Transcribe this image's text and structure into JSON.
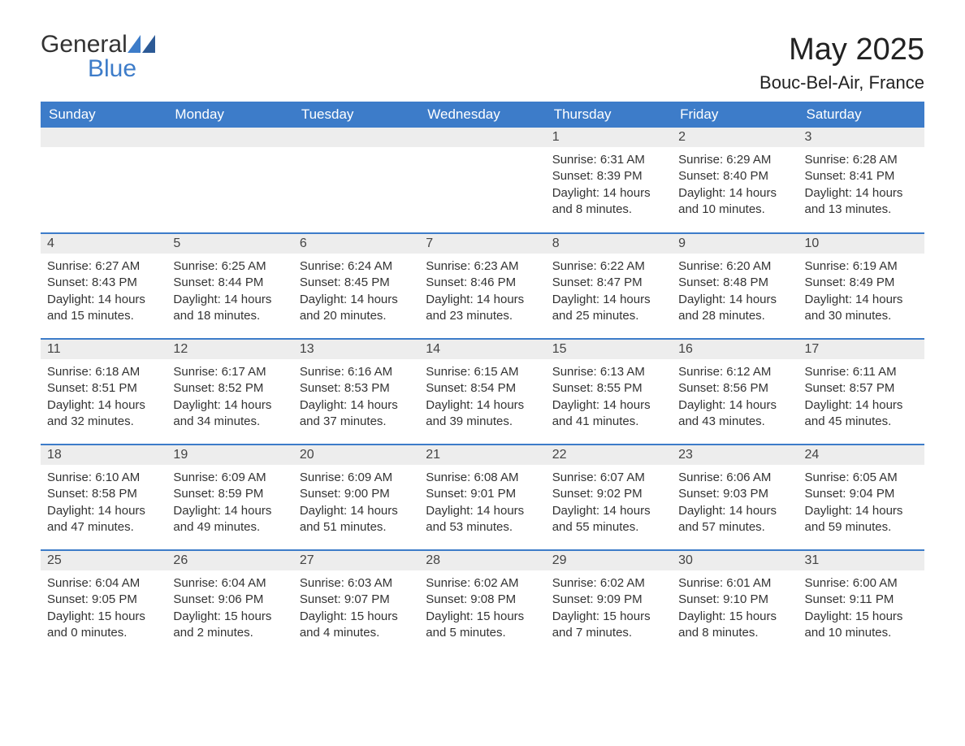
{
  "brand": {
    "word1": "General",
    "word2": "Blue",
    "text_color": "#333333",
    "accent_color": "#3d7cc9"
  },
  "title": "May 2025",
  "location": "Bouc-Bel-Air, France",
  "colors": {
    "header_bg": "#3d7cc9",
    "header_text": "#ffffff",
    "daynum_bg": "#ededed",
    "week_divider": "#3d7cc9",
    "body_text": "#333333",
    "background": "#ffffff"
  },
  "typography": {
    "title_fontsize": 38,
    "location_fontsize": 22,
    "header_fontsize": 17,
    "daynum_fontsize": 16,
    "body_fontsize": 15
  },
  "days_of_week": [
    "Sunday",
    "Monday",
    "Tuesday",
    "Wednesday",
    "Thursday",
    "Friday",
    "Saturday"
  ],
  "weeks": [
    [
      null,
      null,
      null,
      null,
      {
        "num": "1",
        "sunrise": "Sunrise: 6:31 AM",
        "sunset": "Sunset: 8:39 PM",
        "daylight": "Daylight: 14 hours and 8 minutes."
      },
      {
        "num": "2",
        "sunrise": "Sunrise: 6:29 AM",
        "sunset": "Sunset: 8:40 PM",
        "daylight": "Daylight: 14 hours and 10 minutes."
      },
      {
        "num": "3",
        "sunrise": "Sunrise: 6:28 AM",
        "sunset": "Sunset: 8:41 PM",
        "daylight": "Daylight: 14 hours and 13 minutes."
      }
    ],
    [
      {
        "num": "4",
        "sunrise": "Sunrise: 6:27 AM",
        "sunset": "Sunset: 8:43 PM",
        "daylight": "Daylight: 14 hours and 15 minutes."
      },
      {
        "num": "5",
        "sunrise": "Sunrise: 6:25 AM",
        "sunset": "Sunset: 8:44 PM",
        "daylight": "Daylight: 14 hours and 18 minutes."
      },
      {
        "num": "6",
        "sunrise": "Sunrise: 6:24 AM",
        "sunset": "Sunset: 8:45 PM",
        "daylight": "Daylight: 14 hours and 20 minutes."
      },
      {
        "num": "7",
        "sunrise": "Sunrise: 6:23 AM",
        "sunset": "Sunset: 8:46 PM",
        "daylight": "Daylight: 14 hours and 23 minutes."
      },
      {
        "num": "8",
        "sunrise": "Sunrise: 6:22 AM",
        "sunset": "Sunset: 8:47 PM",
        "daylight": "Daylight: 14 hours and 25 minutes."
      },
      {
        "num": "9",
        "sunrise": "Sunrise: 6:20 AM",
        "sunset": "Sunset: 8:48 PM",
        "daylight": "Daylight: 14 hours and 28 minutes."
      },
      {
        "num": "10",
        "sunrise": "Sunrise: 6:19 AM",
        "sunset": "Sunset: 8:49 PM",
        "daylight": "Daylight: 14 hours and 30 minutes."
      }
    ],
    [
      {
        "num": "11",
        "sunrise": "Sunrise: 6:18 AM",
        "sunset": "Sunset: 8:51 PM",
        "daylight": "Daylight: 14 hours and 32 minutes."
      },
      {
        "num": "12",
        "sunrise": "Sunrise: 6:17 AM",
        "sunset": "Sunset: 8:52 PM",
        "daylight": "Daylight: 14 hours and 34 minutes."
      },
      {
        "num": "13",
        "sunrise": "Sunrise: 6:16 AM",
        "sunset": "Sunset: 8:53 PM",
        "daylight": "Daylight: 14 hours and 37 minutes."
      },
      {
        "num": "14",
        "sunrise": "Sunrise: 6:15 AM",
        "sunset": "Sunset: 8:54 PM",
        "daylight": "Daylight: 14 hours and 39 minutes."
      },
      {
        "num": "15",
        "sunrise": "Sunrise: 6:13 AM",
        "sunset": "Sunset: 8:55 PM",
        "daylight": "Daylight: 14 hours and 41 minutes."
      },
      {
        "num": "16",
        "sunrise": "Sunrise: 6:12 AM",
        "sunset": "Sunset: 8:56 PM",
        "daylight": "Daylight: 14 hours and 43 minutes."
      },
      {
        "num": "17",
        "sunrise": "Sunrise: 6:11 AM",
        "sunset": "Sunset: 8:57 PM",
        "daylight": "Daylight: 14 hours and 45 minutes."
      }
    ],
    [
      {
        "num": "18",
        "sunrise": "Sunrise: 6:10 AM",
        "sunset": "Sunset: 8:58 PM",
        "daylight": "Daylight: 14 hours and 47 minutes."
      },
      {
        "num": "19",
        "sunrise": "Sunrise: 6:09 AM",
        "sunset": "Sunset: 8:59 PM",
        "daylight": "Daylight: 14 hours and 49 minutes."
      },
      {
        "num": "20",
        "sunrise": "Sunrise: 6:09 AM",
        "sunset": "Sunset: 9:00 PM",
        "daylight": "Daylight: 14 hours and 51 minutes."
      },
      {
        "num": "21",
        "sunrise": "Sunrise: 6:08 AM",
        "sunset": "Sunset: 9:01 PM",
        "daylight": "Daylight: 14 hours and 53 minutes."
      },
      {
        "num": "22",
        "sunrise": "Sunrise: 6:07 AM",
        "sunset": "Sunset: 9:02 PM",
        "daylight": "Daylight: 14 hours and 55 minutes."
      },
      {
        "num": "23",
        "sunrise": "Sunrise: 6:06 AM",
        "sunset": "Sunset: 9:03 PM",
        "daylight": "Daylight: 14 hours and 57 minutes."
      },
      {
        "num": "24",
        "sunrise": "Sunrise: 6:05 AM",
        "sunset": "Sunset: 9:04 PM",
        "daylight": "Daylight: 14 hours and 59 minutes."
      }
    ],
    [
      {
        "num": "25",
        "sunrise": "Sunrise: 6:04 AM",
        "sunset": "Sunset: 9:05 PM",
        "daylight": "Daylight: 15 hours and 0 minutes."
      },
      {
        "num": "26",
        "sunrise": "Sunrise: 6:04 AM",
        "sunset": "Sunset: 9:06 PM",
        "daylight": "Daylight: 15 hours and 2 minutes."
      },
      {
        "num": "27",
        "sunrise": "Sunrise: 6:03 AM",
        "sunset": "Sunset: 9:07 PM",
        "daylight": "Daylight: 15 hours and 4 minutes."
      },
      {
        "num": "28",
        "sunrise": "Sunrise: 6:02 AM",
        "sunset": "Sunset: 9:08 PM",
        "daylight": "Daylight: 15 hours and 5 minutes."
      },
      {
        "num": "29",
        "sunrise": "Sunrise: 6:02 AM",
        "sunset": "Sunset: 9:09 PM",
        "daylight": "Daylight: 15 hours and 7 minutes."
      },
      {
        "num": "30",
        "sunrise": "Sunrise: 6:01 AM",
        "sunset": "Sunset: 9:10 PM",
        "daylight": "Daylight: 15 hours and 8 minutes."
      },
      {
        "num": "31",
        "sunrise": "Sunrise: 6:00 AM",
        "sunset": "Sunset: 9:11 PM",
        "daylight": "Daylight: 15 hours and 10 minutes."
      }
    ]
  ]
}
